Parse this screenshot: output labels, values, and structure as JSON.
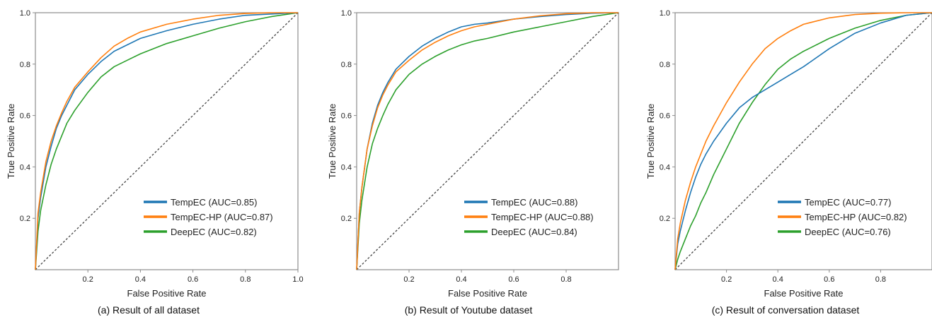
{
  "chart_data": [
    {
      "type": "line",
      "caption": "(a) Result of all dataset",
      "xlabel": "False Positive Rate",
      "ylabel": "True Positive Rate",
      "xlim": [
        0,
        1
      ],
      "ylim": [
        0,
        1
      ],
      "xticks": [
        0.2,
        0.4,
        0.6,
        0.8,
        1.0
      ],
      "xtick_labels": [
        "0.2",
        "0.4",
        "0.6",
        "0.8",
        "1.0"
      ],
      "yticks": [
        0.2,
        0.4,
        0.6,
        0.8,
        1.0
      ],
      "ytick_labels": [
        "0.2",
        "0.4",
        "0.6",
        "0.8",
        "1.0"
      ],
      "grid": false,
      "legend_position": "bottom-right",
      "diagonal": true,
      "series": [
        {
          "name": "TempEC (AUC=0.85)",
          "color": "#1f77b4",
          "x": [
            0,
            0.01,
            0.02,
            0.04,
            0.06,
            0.08,
            0.1,
            0.12,
            0.15,
            0.2,
            0.25,
            0.3,
            0.35,
            0.4,
            0.5,
            0.6,
            0.7,
            0.8,
            0.9,
            1.0
          ],
          "y": [
            0,
            0.2,
            0.28,
            0.4,
            0.48,
            0.55,
            0.6,
            0.64,
            0.7,
            0.76,
            0.81,
            0.85,
            0.875,
            0.9,
            0.93,
            0.955,
            0.975,
            0.99,
            0.995,
            1.0
          ]
        },
        {
          "name": "TempEC-HP (AUC=0.87)",
          "color": "#ff7f0e",
          "x": [
            0,
            0.01,
            0.02,
            0.04,
            0.06,
            0.08,
            0.1,
            0.12,
            0.15,
            0.2,
            0.25,
            0.3,
            0.35,
            0.4,
            0.5,
            0.6,
            0.7,
            0.8,
            0.9,
            1.0
          ],
          "y": [
            0,
            0.22,
            0.3,
            0.42,
            0.5,
            0.56,
            0.61,
            0.655,
            0.71,
            0.77,
            0.825,
            0.87,
            0.9,
            0.925,
            0.955,
            0.975,
            0.99,
            0.997,
            1.0,
            1.0
          ]
        },
        {
          "name": "DeepEC (AUC=0.82)",
          "color": "#2ca02c",
          "x": [
            0,
            0.01,
            0.02,
            0.04,
            0.06,
            0.08,
            0.1,
            0.12,
            0.15,
            0.2,
            0.25,
            0.3,
            0.35,
            0.4,
            0.5,
            0.6,
            0.7,
            0.8,
            0.9,
            1.0
          ],
          "y": [
            0,
            0.15,
            0.23,
            0.33,
            0.41,
            0.47,
            0.52,
            0.57,
            0.62,
            0.69,
            0.75,
            0.79,
            0.815,
            0.84,
            0.88,
            0.91,
            0.94,
            0.965,
            0.985,
            1.0
          ]
        }
      ]
    },
    {
      "type": "line",
      "caption": "(b) Result of Youtube dataset",
      "xlabel": "False Positive Rate",
      "ylabel": "True Positive Rate",
      "xlim": [
        0,
        1
      ],
      "ylim": [
        0,
        1
      ],
      "xticks": [
        0.2,
        0.4,
        0.6,
        0.8
      ],
      "xtick_labels": [
        "0.2",
        "0.4",
        "0.6",
        "0.8"
      ],
      "yticks": [
        0.2,
        0.4,
        0.6,
        0.8,
        1.0
      ],
      "ytick_labels": [
        "0.2",
        "0.4",
        "0.6",
        "0.8",
        "1.0"
      ],
      "grid": false,
      "legend_position": "bottom-right",
      "diagonal": true,
      "series": [
        {
          "name": "TempEC (AUC=0.88)",
          "color": "#1f77b4",
          "x": [
            0,
            0.01,
            0.02,
            0.04,
            0.06,
            0.08,
            0.1,
            0.12,
            0.15,
            0.2,
            0.25,
            0.3,
            0.35,
            0.4,
            0.45,
            0.5,
            0.6,
            0.7,
            0.8,
            0.9,
            1.0
          ],
          "y": [
            0,
            0.22,
            0.32,
            0.47,
            0.57,
            0.64,
            0.69,
            0.73,
            0.78,
            0.83,
            0.87,
            0.9,
            0.925,
            0.945,
            0.955,
            0.96,
            0.975,
            0.985,
            0.993,
            0.998,
            1.0
          ]
        },
        {
          "name": "TempEC-HP (AUC=0.88)",
          "color": "#ff7f0e",
          "x": [
            0,
            0.01,
            0.02,
            0.04,
            0.06,
            0.08,
            0.1,
            0.12,
            0.15,
            0.2,
            0.25,
            0.3,
            0.35,
            0.4,
            0.45,
            0.5,
            0.6,
            0.7,
            0.8,
            0.9,
            1.0
          ],
          "y": [
            0,
            0.22,
            0.32,
            0.47,
            0.56,
            0.63,
            0.68,
            0.72,
            0.77,
            0.815,
            0.855,
            0.885,
            0.91,
            0.93,
            0.945,
            0.955,
            0.975,
            0.988,
            0.996,
            1.0,
            1.0
          ]
        },
        {
          "name": "DeepEC (AUC=0.84)",
          "color": "#2ca02c",
          "x": [
            0,
            0.01,
            0.02,
            0.04,
            0.06,
            0.08,
            0.1,
            0.12,
            0.15,
            0.2,
            0.25,
            0.3,
            0.35,
            0.4,
            0.45,
            0.5,
            0.6,
            0.7,
            0.8,
            0.9,
            1.0
          ],
          "y": [
            0,
            0.18,
            0.27,
            0.4,
            0.49,
            0.55,
            0.6,
            0.645,
            0.7,
            0.76,
            0.8,
            0.83,
            0.855,
            0.875,
            0.89,
            0.9,
            0.925,
            0.945,
            0.965,
            0.985,
            1.0
          ]
        }
      ]
    },
    {
      "type": "line",
      "caption": "(c) Result of conversation dataset",
      "xlabel": "False Positive Rate",
      "ylabel": "True Positive Rate",
      "xlim": [
        0,
        1
      ],
      "ylim": [
        0,
        1
      ],
      "xticks": [
        0.2,
        0.4,
        0.6,
        0.8
      ],
      "xtick_labels": [
        "0.2",
        "0.4",
        "0.6",
        "0.8"
      ],
      "yticks": [
        0.2,
        0.4,
        0.6,
        0.8,
        1.0
      ],
      "ytick_labels": [
        "0.2",
        "0.4",
        "0.6",
        "0.8",
        "1.0"
      ],
      "grid": false,
      "legend_position": "bottom-right",
      "diagonal": true,
      "series": [
        {
          "name": "TempEC (AUC=0.77)",
          "color": "#1f77b4",
          "x": [
            0,
            0.01,
            0.02,
            0.04,
            0.06,
            0.08,
            0.1,
            0.12,
            0.15,
            0.2,
            0.25,
            0.3,
            0.35,
            0.4,
            0.45,
            0.5,
            0.6,
            0.7,
            0.8,
            0.9,
            1.0
          ],
          "y": [
            0,
            0.1,
            0.15,
            0.23,
            0.3,
            0.36,
            0.41,
            0.45,
            0.5,
            0.57,
            0.63,
            0.67,
            0.7,
            0.73,
            0.76,
            0.79,
            0.86,
            0.92,
            0.96,
            0.99,
            1.0
          ]
        },
        {
          "name": "TempEC-HP (AUC=0.82)",
          "color": "#ff7f0e",
          "x": [
            0,
            0.01,
            0.02,
            0.04,
            0.06,
            0.08,
            0.1,
            0.12,
            0.15,
            0.2,
            0.25,
            0.3,
            0.35,
            0.4,
            0.45,
            0.5,
            0.6,
            0.7,
            0.8,
            0.9,
            1.0
          ],
          "y": [
            0,
            0.12,
            0.18,
            0.27,
            0.34,
            0.4,
            0.45,
            0.5,
            0.56,
            0.65,
            0.73,
            0.8,
            0.86,
            0.9,
            0.93,
            0.955,
            0.98,
            0.993,
            0.998,
            1.0,
            1.0
          ]
        },
        {
          "name": "DeepEC (AUC=0.76)",
          "color": "#2ca02c",
          "x": [
            0,
            0.01,
            0.02,
            0.04,
            0.06,
            0.08,
            0.1,
            0.12,
            0.15,
            0.2,
            0.25,
            0.3,
            0.35,
            0.4,
            0.45,
            0.5,
            0.6,
            0.7,
            0.8,
            0.9,
            1.0
          ],
          "y": [
            0,
            0.04,
            0.07,
            0.12,
            0.17,
            0.21,
            0.26,
            0.3,
            0.37,
            0.47,
            0.57,
            0.65,
            0.72,
            0.78,
            0.82,
            0.85,
            0.9,
            0.94,
            0.97,
            0.99,
            1.0
          ]
        }
      ]
    }
  ]
}
